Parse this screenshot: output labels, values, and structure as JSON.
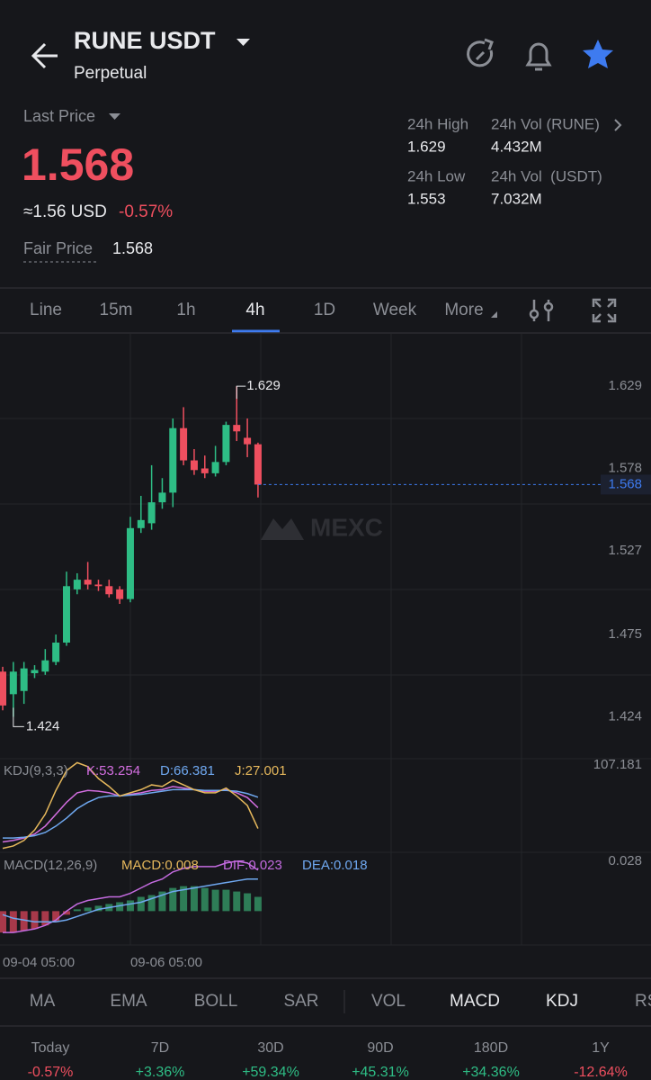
{
  "header": {
    "pair": "RUNE USDT",
    "contract": "Perpetual"
  },
  "ticker": {
    "last_price_label": "Last Price",
    "last_price": "1.568",
    "usd_approx": "≈1.56 USD",
    "change": "-0.57%",
    "fair_price_label": "Fair Price",
    "fair_price": "1.568"
  },
  "stats": [
    {
      "label": "24h High",
      "value": "1.629"
    },
    {
      "label": "24h Vol (RUNE)",
      "value": "4.432M"
    },
    {
      "label": "24h Low",
      "value": "1.553"
    },
    {
      "label": "24h Vol  (USDT)",
      "value": "7.032M"
    }
  ],
  "intervals": [
    "Line",
    "15m",
    "1h",
    "4h",
    "1D",
    "Week",
    "More"
  ],
  "chart_data": [
    {
      "type": "candlestick",
      "categories": [
        "09-04 05:00",
        null,
        null,
        null,
        null,
        null,
        null,
        null,
        null,
        null,
        null,
        null,
        "09-06 05:00",
        null,
        null,
        null,
        null,
        null,
        null,
        null,
        null,
        null,
        null,
        null,
        null
      ],
      "open": [
        1.452,
        1.438,
        1.44,
        1.451,
        1.452,
        1.458,
        1.47,
        1.503,
        1.509,
        1.506,
        1.505,
        1.503,
        1.497,
        1.541,
        1.544,
        1.557,
        1.563,
        1.603,
        1.583,
        1.578,
        1.575,
        1.582,
        1.605,
        1.597,
        1.593
      ],
      "high": [
        1.455,
        1.458,
        1.458,
        1.456,
        1.466,
        1.475,
        1.514,
        1.513,
        1.52,
        1.509,
        1.509,
        1.505,
        1.548,
        1.561,
        1.58,
        1.572,
        1.609,
        1.616,
        1.59,
        1.586,
        1.592,
        1.607,
        1.629,
        1.609,
        1.594
      ],
      "low": [
        1.428,
        1.424,
        1.432,
        1.448,
        1.45,
        1.456,
        1.468,
        1.5,
        1.503,
        1.502,
        1.498,
        1.494,
        1.495,
        1.538,
        1.54,
        1.553,
        1.554,
        1.58,
        1.574,
        1.572,
        1.573,
        1.58,
        1.595,
        1.585,
        1.56
      ],
      "close": [
        1.431,
        1.452,
        1.454,
        1.453,
        1.459,
        1.47,
        1.505,
        1.509,
        1.506,
        1.505,
        1.5,
        1.497,
        1.541,
        1.546,
        1.557,
        1.563,
        1.603,
        1.583,
        1.577,
        1.575,
        1.582,
        1.605,
        1.601,
        1.593,
        1.568
      ],
      "up_color": "#2ebd85",
      "down_color": "#ef4f5f",
      "ylim": [
        1.398,
        1.662
      ],
      "yticks": [
        1.424,
        1.475,
        1.527,
        1.578,
        1.629
      ],
      "annotations": {
        "high": "1.629",
        "low": "1.424",
        "last": "1.568"
      },
      "watermark": "MEXC"
    },
    {
      "type": "line",
      "title": "KDJ(9,3,3)",
      "ylim": [
        -3,
        115
      ],
      "yticks": [
        107.181
      ],
      "series": [
        {
          "name": "K:53.254",
          "color": "#d36ee0",
          "values": [
            10,
            12,
            15,
            20,
            30,
            45,
            60,
            72,
            75,
            74,
            72,
            68,
            70,
            72,
            75,
            76,
            80,
            78,
            76,
            74,
            74,
            76,
            72,
            66,
            53.254
          ]
        },
        {
          "name": "D:66.381",
          "color": "#6fa8f0",
          "values": [
            15,
            15,
            16,
            18,
            22,
            30,
            40,
            52,
            60,
            66,
            68,
            68,
            69,
            70,
            72,
            74,
            76,
            76,
            76,
            75,
            75,
            75,
            74,
            71,
            66.381
          ]
        },
        {
          "name": "J:27.001",
          "color": "#e6b85c",
          "values": [
            2,
            5,
            12,
            25,
            45,
            75,
            100,
            110,
            105,
            90,
            80,
            68,
            72,
            76,
            82,
            80,
            88,
            82,
            76,
            72,
            72,
            78,
            68,
            56,
            27.001
          ]
        }
      ]
    },
    {
      "type": "bar",
      "title": "MACD(12,26,9)",
      "ylim": [
        -0.019,
        0.033
      ],
      "yticks": [
        0.028
      ],
      "series": [
        {
          "name": "MACD:0.008",
          "type": "bar",
          "color": "#e6b85c",
          "up_color": "#2e7d57",
          "down_color": "#a8394a",
          "values": [
            -0.012,
            -0.012,
            -0.011,
            -0.01,
            -0.008,
            -0.006,
            -0.002,
            0.001,
            0.002,
            0.003,
            0.004,
            0.005,
            0.006,
            0.008,
            0.009,
            0.011,
            0.013,
            0.014,
            0.014,
            0.013,
            0.012,
            0.012,
            0.011,
            0.01,
            0.008
          ]
        },
        {
          "name": "DIF:0.023",
          "type": "line",
          "color": "#c46be0",
          "values": [
            -0.012,
            -0.012,
            -0.011,
            -0.01,
            -0.008,
            -0.005,
            0.0,
            0.004,
            0.006,
            0.007,
            0.008,
            0.008,
            0.01,
            0.013,
            0.016,
            0.018,
            0.022,
            0.024,
            0.025,
            0.025,
            0.025,
            0.027,
            0.028,
            0.027,
            0.023
          ]
        },
        {
          "name": "DEA:0.018",
          "type": "line",
          "color": "#6fa8f0",
          "values": [
            -0.002,
            -0.004,
            -0.005,
            -0.006,
            -0.006,
            -0.006,
            -0.005,
            -0.003,
            -0.001,
            0.001,
            0.002,
            0.003,
            0.004,
            0.005,
            0.007,
            0.009,
            0.011,
            0.012,
            0.013,
            0.014,
            0.015,
            0.016,
            0.017,
            0.018,
            0.018
          ]
        }
      ]
    }
  ],
  "indicators": [
    "MA",
    "EMA",
    "BOLL",
    "SAR",
    "VOL",
    "MACD",
    "KDJ",
    "RS"
  ],
  "performance": [
    {
      "label": "Today",
      "value": "-0.57%"
    },
    {
      "label": "7D",
      "value": "+3.36%"
    },
    {
      "label": "30D",
      "value": "+59.34%"
    },
    {
      "label": "90D",
      "value": "+45.31%"
    },
    {
      "label": "180D",
      "value": "+34.36%"
    },
    {
      "label": "1Y",
      "value": "-12.64%"
    }
  ]
}
